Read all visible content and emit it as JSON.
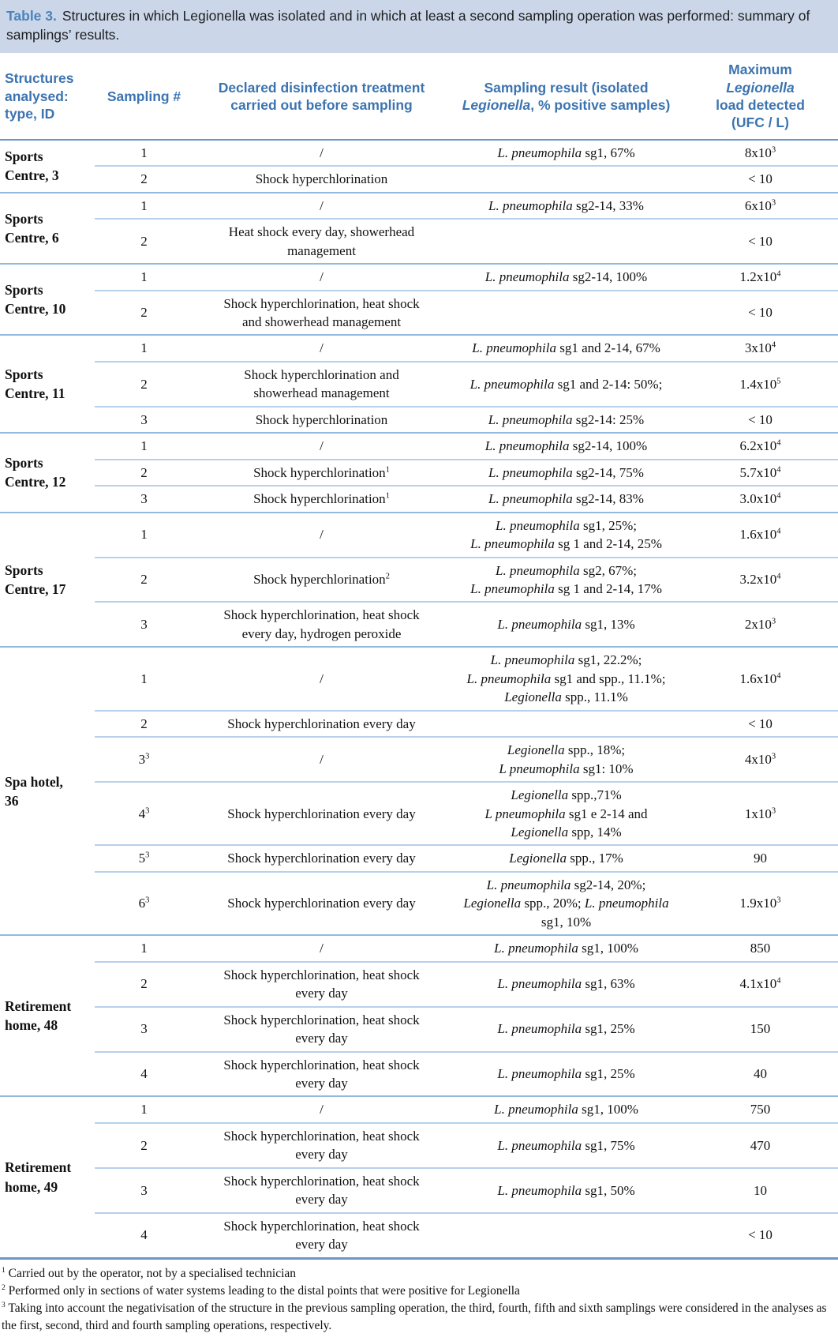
{
  "caption": {
    "label": "Table 3.",
    "text": "Structures in which Legionella was isolated and in which at least a second sampling operation was performed: summary of samplings’ results."
  },
  "columns": [
    {
      "id": "structures",
      "lines": [
        "Structures",
        "analysed:",
        "type, ID"
      ]
    },
    {
      "id": "sampling-number",
      "lines": [
        "Sampling #"
      ]
    },
    {
      "id": "treatment",
      "lines": [
        "Declared disinfection treatment",
        "carried out before sampling"
      ]
    },
    {
      "id": "result",
      "lines": [
        "Sampling result (isolated",
        "Legionella, % positive samples)"
      ]
    },
    {
      "id": "max-load",
      "lines": [
        "Maximum",
        "Legionella",
        "load detected",
        "(UFC / L)"
      ]
    }
  ],
  "groups": [
    {
      "name_lines": [
        "Sports",
        "Centre, 3"
      ],
      "rows": [
        {
          "n": "1",
          "t": [
            "/"
          ],
          "r": [
            "L. pneumophila sg1, 67%"
          ],
          "v": "8x10",
          "e": "3"
        },
        {
          "n": "2",
          "t": [
            "Shock hyperchlorination"
          ],
          "r": [],
          "v": "< 10"
        }
      ]
    },
    {
      "name_lines": [
        "Sports",
        "Centre, 6"
      ],
      "rows": [
        {
          "n": "1",
          "t": [
            "/"
          ],
          "r": [
            "L. pneumophila sg2-14, 33%"
          ],
          "v": "6x10",
          "e": "3"
        },
        {
          "n": "2",
          "t": [
            "Heat shock every day, showerhead",
            "management"
          ],
          "r": [],
          "v": "< 10"
        }
      ]
    },
    {
      "name_lines": [
        "Sports",
        "Centre, 10"
      ],
      "rows": [
        {
          "n": "1",
          "t": [
            "/"
          ],
          "r": [
            "L. pneumophila sg2-14, 100%"
          ],
          "v": "1.2x10",
          "e": "4"
        },
        {
          "n": "2",
          "t": [
            "Shock hyperchlorination, heat shock",
            "and showerhead management"
          ],
          "r": [],
          "v": "< 10"
        }
      ]
    },
    {
      "name_lines": [
        "Sports",
        "Centre, 11"
      ],
      "rows": [
        {
          "n": "1",
          "t": [
            "/"
          ],
          "r": [
            "L. pneumophila sg1 and 2-14, 67%"
          ],
          "v": "3x10",
          "e": "4"
        },
        {
          "n": "2",
          "t": [
            "Shock hyperchlorination and",
            "showerhead management"
          ],
          "r": [
            "L. pneumophila sg1 and 2-14: 50%;"
          ],
          "v": "1.4x10",
          "e": "5"
        },
        {
          "n": "3",
          "t": [
            "Shock hyperchlorination"
          ],
          "r": [
            "L. pneumophila sg2-14: 25%"
          ],
          "v": "< 10"
        }
      ]
    },
    {
      "name_lines": [
        "Sports",
        "Centre, 12"
      ],
      "rows": [
        {
          "n": "1",
          "t": [
            "/"
          ],
          "r": [
            "L. pneumophila sg2-14, 100%"
          ],
          "v": "6.2x10",
          "e": "4"
        },
        {
          "n": "2",
          "t": [
            "Shock hyperchlorination"
          ],
          "ts": "1",
          "r": [
            "L. pneumophila sg2-14, 75%"
          ],
          "v": "5.7x10",
          "e": "4"
        },
        {
          "n": "3",
          "t": [
            "Shock hyperchlorination"
          ],
          "ts": "1",
          "r": [
            "L. pneumophila sg2-14, 83%"
          ],
          "v": "3.0x10",
          "e": "4"
        }
      ]
    },
    {
      "name_lines": [
        "Sports",
        "Centre, 17"
      ],
      "rows": [
        {
          "n": "1",
          "t": [
            "/"
          ],
          "r": [
            "L. pneumophila sg1, 25%;",
            "L. pneumophila sg 1 and 2-14, 25%"
          ],
          "v": "1.6x10",
          "e": "4"
        },
        {
          "n": "2",
          "t": [
            "Shock hyperchlorination"
          ],
          "ts": "2",
          "r": [
            "L. pneumophila sg2, 67%;",
            "L. pneumophila sg 1 and 2-14, 17%"
          ],
          "v": "3.2x10",
          "e": "4"
        },
        {
          "n": "3",
          "t": [
            "Shock hyperchlorination, heat shock",
            "every day, hydrogen peroxide"
          ],
          "r": [
            "L. pneumophila sg1, 13%"
          ],
          "v": "2x10",
          "e": "3"
        }
      ]
    },
    {
      "name_lines": [
        "Spa hotel,",
        "36"
      ],
      "rows": [
        {
          "n": "1",
          "t": [
            "/"
          ],
          "r": [
            "L. pneumophila sg1, 22.2%;",
            "L. pneumophila sg1 and spp., 11.1%;",
            "Legionella spp., 11.1%"
          ],
          "v": "1.6x10",
          "e": "4"
        },
        {
          "n": "2",
          "t": [
            "Shock hyperchlorination every day"
          ],
          "r": [],
          "v": "< 10"
        },
        {
          "n": "3",
          "ns": "3",
          "t": [
            "/"
          ],
          "r": [
            "Legionella spp., 18%;",
            "L pneumophila sg1: 10%"
          ],
          "v": "4x10",
          "e": "3"
        },
        {
          "n": "4",
          "ns": "3",
          "t": [
            "Shock hyperchlorination every day"
          ],
          "r": [
            "Legionella spp.,71%",
            "L pneumophila sg1 e 2-14 and",
            "Legionella spp, 14%"
          ],
          "v": "1x10",
          "e": "3"
        },
        {
          "n": "5",
          "ns": "3",
          "t": [
            "Shock hyperchlorination every day"
          ],
          "r": [
            "Legionella spp., 17%"
          ],
          "v": "90"
        },
        {
          "n": "6",
          "ns": "3",
          "t": [
            "Shock hyperchlorination every day"
          ],
          "r": [
            "L. pneumophila sg2-14, 20%;",
            "Legionella spp., 20%; L. pneumophila",
            "sg1, 10%"
          ],
          "v": "1.9x10",
          "e": "3"
        }
      ]
    },
    {
      "name_lines": [
        "Retirement",
        "home, 48"
      ],
      "rows": [
        {
          "n": "1",
          "t": [
            "/"
          ],
          "r": [
            "L. pneumophila sg1, 100%"
          ],
          "v": "850"
        },
        {
          "n": "2",
          "t": [
            "Shock hyperchlorination, heat shock",
            "every day"
          ],
          "r": [
            "L. pneumophila sg1, 63%"
          ],
          "v": "4.1x10",
          "e": "4"
        },
        {
          "n": "3",
          "t": [
            "Shock hyperchlorination, heat shock",
            "every day"
          ],
          "r": [
            "L. pneumophila sg1, 25%"
          ],
          "v": "150"
        },
        {
          "n": "4",
          "t": [
            "Shock hyperchlorination, heat shock",
            "every day"
          ],
          "r": [
            "L. pneumophila sg1, 25%"
          ],
          "v": "40"
        }
      ]
    },
    {
      "name_lines": [
        "Retirement",
        "home, 49"
      ],
      "rows": [
        {
          "n": "1",
          "t": [
            "/"
          ],
          "r": [
            "L. pneumophila sg1, 100%"
          ],
          "v": "750"
        },
        {
          "n": "2",
          "t": [
            "Shock hyperchlorination, heat shock",
            "every day"
          ],
          "r": [
            "L. pneumophila sg1, 75%"
          ],
          "v": "470"
        },
        {
          "n": "3",
          "t": [
            "Shock hyperchlorination, heat shock",
            "every day"
          ],
          "r": [
            "L. pneumophila sg1, 50%"
          ],
          "v": "10"
        },
        {
          "n": "4",
          "t": [
            "Shock hyperchlorination, heat shock",
            "every day"
          ],
          "r": [],
          "v": "< 10"
        }
      ]
    }
  ],
  "footnotes": [
    {
      "sup": "1",
      "text": "Carried out by the operator, not by a specialised technician"
    },
    {
      "sup": "2",
      "text": "Performed only in sections of water systems leading to the distal points that were positive for Legionella"
    },
    {
      "sup": "3",
      "text": "Taking into account the negativisation of the structure in the previous sampling operation, the third, fourth, fifth and sixth samplings were considered in the analyses as the first, second, third and fourth sampling operations, respectively."
    }
  ],
  "colors": {
    "caption_background": "#cbd7e9",
    "caption_label_blue": "#4d82ba",
    "header_text_blue": "#3c74b0",
    "rule_medium_blue": "#6b97c9",
    "rule_light_blue": "#b7d1ea",
    "group_rule_blue": "#93b9de",
    "body_text": "#111111"
  }
}
